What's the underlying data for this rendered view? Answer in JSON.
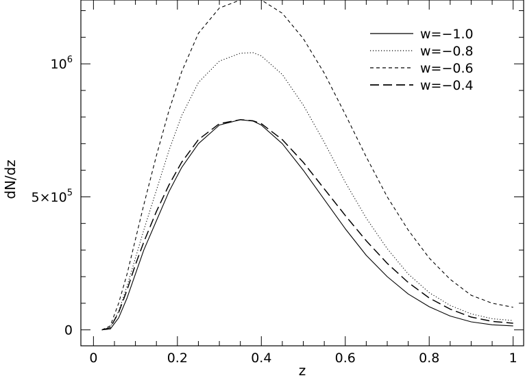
{
  "chart_data": {
    "type": "line",
    "xlabel": "z",
    "ylabel": "dN/dz",
    "xlim": [
      -0.03,
      1.025
    ],
    "ylim": [
      -60000,
      1240000
    ],
    "xticks": [
      {
        "value": 0,
        "label": "0"
      },
      {
        "value": 0.2,
        "label": "0.2"
      },
      {
        "value": 0.4,
        "label": "0.4"
      },
      {
        "value": 0.6,
        "label": "0.6"
      },
      {
        "value": 0.8,
        "label": "0.8"
      },
      {
        "value": 1,
        "label": "1"
      }
    ],
    "yticks": [
      {
        "value": 0,
        "base": "0",
        "exp": ""
      },
      {
        "value": 500000,
        "base": "5×10",
        "exp": "5"
      },
      {
        "value": 1000000,
        "base": "10",
        "exp": "6"
      }
    ],
    "x_minor_step": 0.05,
    "y_minor_step": 100000,
    "grid": false,
    "legend_position": "top-right",
    "x": [
      0.02,
      0.04,
      0.06,
      0.08,
      0.1,
      0.12,
      0.15,
      0.18,
      0.21,
      0.25,
      0.3,
      0.35,
      0.38,
      0.4,
      0.45,
      0.5,
      0.55,
      0.6,
      0.65,
      0.7,
      0.75,
      0.8,
      0.85,
      0.9,
      0.95,
      1.0
    ],
    "series": [
      {
        "name": "w=−1.0",
        "dash": "solid",
        "values": [
          0,
          3000,
          45000,
          120000,
          210000,
          300000,
          410000,
          520000,
          610000,
          700000,
          770000,
          790000,
          785000,
          770000,
          700000,
          600000,
          490000,
          380000,
          280000,
          200000,
          135000,
          87000,
          52000,
          30000,
          19000,
          15000
        ]
      },
      {
        "name": "w=−0.8",
        "dash": "dotted",
        "values": [
          0,
          10000,
          70000,
          165000,
          270000,
          375000,
          525000,
          675000,
          805000,
          930000,
          1010000,
          1040000,
          1042000,
          1030000,
          960000,
          845000,
          705000,
          555000,
          420000,
          305000,
          210000,
          140000,
          92000,
          60000,
          42000,
          35000
        ]
      },
      {
        "name": "w=−0.6",
        "dash": "short-dash",
        "values": [
          0,
          15000,
          100000,
          210000,
          340000,
          470000,
          655000,
          825000,
          970000,
          1115000,
          1210000,
          1240000,
          1245000,
          1240000,
          1190000,
          1095000,
          965000,
          810000,
          650000,
          500000,
          375000,
          270000,
          190000,
          130000,
          100000,
          85000
        ]
      },
      {
        "name": "w=−0.4",
        "dash": "long-dash",
        "values": [
          0,
          8000,
          65000,
          150000,
          245000,
          330000,
          445000,
          545000,
          630000,
          715000,
          775000,
          790000,
          786000,
          775000,
          715000,
          630000,
          530000,
          430000,
          335000,
          250000,
          178000,
          120000,
          78000,
          48000,
          32000,
          25000
        ]
      }
    ]
  }
}
